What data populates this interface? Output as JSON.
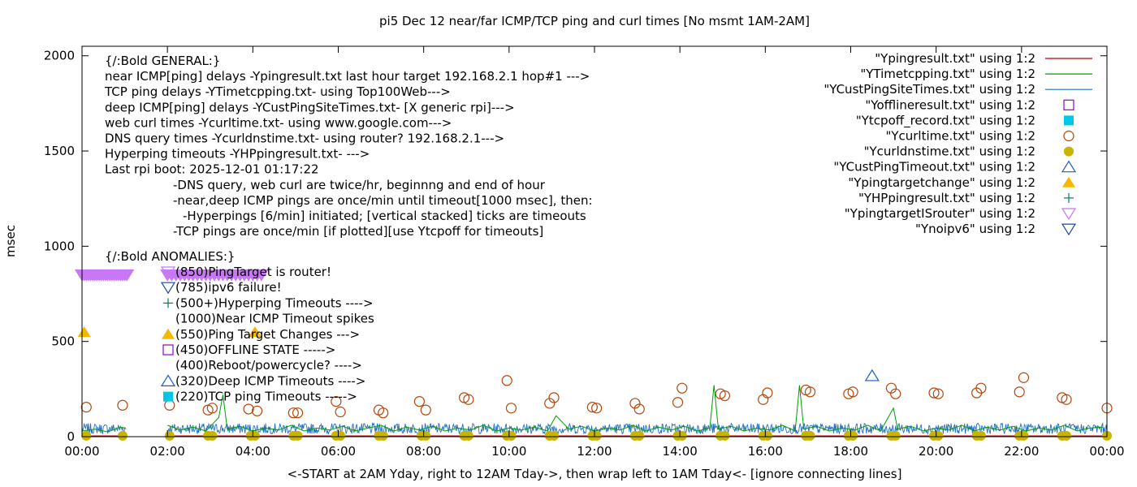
{
  "chart_data": {
    "type": "line",
    "title": "pi5 Dec 12  near/far ICMP/TCP ping and curl times [No msmt 1AM-2AM]",
    "xlabel": "<-START at 2AM Yday, right to 12AM Tday->, then wrap left to 1AM Tday<- [ignore connecting lines]",
    "ylabel": "msec",
    "xlim": [
      0,
      24
    ],
    "ylim": [
      0,
      2050
    ],
    "x_ticks": [
      "00:00",
      "02:00",
      "04:00",
      "06:00",
      "08:00",
      "10:00",
      "12:00",
      "14:00",
      "16:00",
      "18:00",
      "20:00",
      "22:00",
      "00:00"
    ],
    "y_ticks": [
      0,
      500,
      1000,
      1500,
      2000
    ],
    "grid": false,
    "legend_position": "top-right",
    "legend": [
      {
        "label": "\"Ypingresult.txt\" using 1:2",
        "symbol": "line",
        "color": "#c00000"
      },
      {
        "label": "\"YTimetcpping.txt\" using 1:2",
        "symbol": "line",
        "color": "#009e00"
      },
      {
        "label": "\"YCustPingSiteTimes.txt\" using 1:2",
        "symbol": "line",
        "color": "#1f6fc0"
      },
      {
        "label": "\"Yofflineresult.txt\" using 1:2",
        "symbol": "open-square",
        "color": "#9400d3"
      },
      {
        "label": "\"Ytcpoff_record.txt\" using 1:2",
        "symbol": "filled-square",
        "color": "#00c8e6"
      },
      {
        "label": "\"Ycurltime.txt\" using 1:2",
        "symbol": "open-circle",
        "color": "#b5450a"
      },
      {
        "label": "\"Ycurldnstime.txt\" using 1:2",
        "symbol": "filled-circle",
        "color": "#c8b400"
      },
      {
        "label": "\"YCustPingTimeout.txt\" using 1:2",
        "symbol": "open-triangle-up",
        "color": "#1f5cbf"
      },
      {
        "label": "\"Ypingtargetchange\" using 1:2",
        "symbol": "filled-triangle-up",
        "color": "#f5b800"
      },
      {
        "label": "\"YHPpingresult.txt\" using 1:2",
        "symbol": "plus",
        "color": "#008060"
      },
      {
        "label": "\"YpingtargetISrouter\" using 1:2",
        "symbol": "open-triangle-down",
        "color": "#c878f5"
      },
      {
        "label": "\"Ynoipv6\" using 1:2",
        "symbol": "open-triangle-down",
        "color": "#1f4a9a"
      }
    ],
    "annotations": [
      {
        "text": "{/:Bold GENERAL:}",
        "indent": 0
      },
      {
        "text": "near ICMP[ping] delays -Ypingresult.txt last hour target 192.168.2.1 hop#1 --->",
        "indent": 0
      },
      {
        "text": "TCP ping delays -YTimetcpping.txt- using Top100Web--->",
        "indent": 0
      },
      {
        "text": "deep ICMP[ping] delays -YCustPingSiteTimes.txt- [X generic rpi]--->",
        "indent": 0
      },
      {
        "text": "web curl times -Ycurltime.txt- using www.google.com--->",
        "indent": 0
      },
      {
        "text": "DNS query times -Ycurldnstime.txt- using router? 192.168.2.1--->",
        "indent": 0
      },
      {
        "text": "Hyperping timeouts -YHPpingresult.txt- --->",
        "indent": 0
      },
      {
        "text": "Last rpi boot: 2025-12-01 01:17:22",
        "indent": 0
      },
      {
        "text": "-DNS query, web curl are twice/hr, beginnng and end of hour",
        "indent": 1
      },
      {
        "text": "-near,deep ICMP pings are once/min until timeout[1000 msec], then:",
        "indent": 1
      },
      {
        "text": "-Hyperpings [6/min] initiated; [vertical stacked] ticks are timeouts",
        "indent": 2
      },
      {
        "text": "-TCP pings are once/min [if plotted][use Ytcpoff for timeouts]",
        "indent": 1
      },
      {
        "text": "{/:Bold ANOMALIES:}",
        "indent": 0
      }
    ],
    "anomaly_key": [
      {
        "text": "(850)PingTarget is router!",
        "symbol": "open-triangle-down",
        "color": "#c878f5"
      },
      {
        "text": "(785)ipv6 failure!",
        "symbol": "open-triangle-down",
        "color": "#1f4a9a"
      },
      {
        "text": "(500+)Hyperping Timeouts ---->",
        "symbol": "plus",
        "color": "#008060"
      },
      {
        "text": "(1000)Near ICMP Timeout spikes",
        "symbol": "none",
        "color": ""
      },
      {
        "text": "(550)Ping Target Changes --->",
        "symbol": "filled-triangle-up",
        "color": "#f5b800"
      },
      {
        "text": "(450)OFFLINE STATE ----->",
        "symbol": "open-square",
        "color": "#9400d3"
      },
      {
        "text": "(400)Reboot/powercycle? ---->",
        "symbol": "none",
        "color": ""
      },
      {
        "text": "(320)Deep ICMP Timeouts ---->",
        "symbol": "open-triangle-up",
        "color": "#1f5cbf"
      },
      {
        "text": "(220)TCP ping Timeouts ----->",
        "symbol": "filled-square",
        "color": "#00c8e6"
      }
    ],
    "series": [
      {
        "legend_index": 10,
        "style": "thick-band",
        "points": [
          [
            0,
            850
          ],
          [
            0.05,
            850
          ],
          [
            0.1,
            850
          ],
          [
            0.15,
            850
          ],
          [
            0.2,
            850
          ],
          [
            0.25,
            850
          ],
          [
            0.3,
            850
          ],
          [
            0.35,
            850
          ],
          [
            0.4,
            850
          ],
          [
            0.45,
            850
          ],
          [
            0.5,
            850
          ],
          [
            0.55,
            850
          ],
          [
            0.6,
            850
          ],
          [
            0.65,
            850
          ],
          [
            0.7,
            850
          ],
          [
            0.75,
            850
          ],
          [
            0.8,
            850
          ],
          [
            0.85,
            850
          ],
          [
            0.9,
            850
          ],
          [
            0.95,
            850
          ],
          [
            1.0,
            850
          ],
          [
            1.05,
            850
          ],
          [
            2.0,
            850
          ],
          [
            2.1,
            850
          ],
          [
            2.2,
            850
          ],
          [
            2.3,
            850
          ],
          [
            2.4,
            850
          ],
          [
            2.5,
            850
          ],
          [
            2.6,
            850
          ],
          [
            2.7,
            850
          ],
          [
            2.8,
            850
          ],
          [
            2.9,
            850
          ],
          [
            3.0,
            850
          ],
          [
            3.1,
            850
          ],
          [
            3.2,
            850
          ],
          [
            3.3,
            850
          ],
          [
            3.4,
            850
          ],
          [
            3.5,
            850
          ],
          [
            3.6,
            850
          ],
          [
            3.7,
            850
          ],
          [
            3.8,
            850
          ],
          [
            3.9,
            850
          ],
          [
            4.0,
            850
          ],
          [
            4.1,
            850
          ],
          [
            4.2,
            850
          ]
        ]
      },
      {
        "legend_index": 8,
        "points": [
          [
            0.05,
            550
          ],
          [
            4.05,
            550
          ]
        ]
      },
      {
        "legend_index": 7,
        "points": [
          [
            18.5,
            320
          ]
        ]
      },
      {
        "legend_index": 5,
        "points": [
          [
            0.1,
            155
          ],
          [
            0.95,
            165
          ],
          [
            2.05,
            165
          ],
          [
            2.95,
            140
          ],
          [
            3.05,
            150
          ],
          [
            3.9,
            145
          ],
          [
            4.1,
            135
          ],
          [
            4.95,
            125
          ],
          [
            5.05,
            125
          ],
          [
            5.95,
            185
          ],
          [
            6.05,
            130
          ],
          [
            6.95,
            140
          ],
          [
            7.05,
            125
          ],
          [
            7.9,
            185
          ],
          [
            8.05,
            140
          ],
          [
            8.95,
            205
          ],
          [
            9.05,
            195
          ],
          [
            9.95,
            295
          ],
          [
            10.05,
            150
          ],
          [
            10.95,
            175
          ],
          [
            11.05,
            205
          ],
          [
            11.95,
            155
          ],
          [
            12.05,
            150
          ],
          [
            12.95,
            175
          ],
          [
            13.05,
            145
          ],
          [
            13.95,
            180
          ],
          [
            14.05,
            255
          ],
          [
            14.95,
            225
          ],
          [
            15.05,
            215
          ],
          [
            15.95,
            195
          ],
          [
            16.05,
            230
          ],
          [
            16.95,
            245
          ],
          [
            17.05,
            235
          ],
          [
            17.95,
            225
          ],
          [
            18.05,
            235
          ],
          [
            18.95,
            255
          ],
          [
            19.05,
            225
          ],
          [
            19.95,
            230
          ],
          [
            20.05,
            225
          ],
          [
            20.95,
            230
          ],
          [
            21.05,
            255
          ],
          [
            21.95,
            235
          ],
          [
            22.05,
            310
          ],
          [
            22.95,
            205
          ],
          [
            23.05,
            195
          ],
          [
            24.0,
            150
          ]
        ]
      },
      {
        "legend_index": 6,
        "points": [
          [
            0.1,
            5
          ],
          [
            0.95,
            5
          ],
          [
            2.05,
            5
          ],
          [
            2.95,
            5
          ],
          [
            3.05,
            5
          ],
          [
            3.95,
            5
          ],
          [
            4.05,
            5
          ],
          [
            4.95,
            5
          ],
          [
            5.05,
            5
          ],
          [
            5.95,
            5
          ],
          [
            6.05,
            5
          ],
          [
            6.95,
            5
          ],
          [
            7.05,
            5
          ],
          [
            7.95,
            5
          ],
          [
            8.05,
            5
          ],
          [
            8.95,
            5
          ],
          [
            9.05,
            5
          ],
          [
            9.95,
            5
          ],
          [
            10.05,
            5
          ],
          [
            10.95,
            5
          ],
          [
            11.05,
            5
          ],
          [
            11.95,
            5
          ],
          [
            12.05,
            5
          ],
          [
            12.95,
            5
          ],
          [
            13.05,
            5
          ],
          [
            13.95,
            5
          ],
          [
            14.05,
            5
          ],
          [
            14.95,
            5
          ],
          [
            15.05,
            5
          ],
          [
            15.95,
            5
          ],
          [
            16.05,
            5
          ],
          [
            16.95,
            5
          ],
          [
            17.05,
            5
          ],
          [
            17.95,
            5
          ],
          [
            18.05,
            5
          ],
          [
            18.95,
            5
          ],
          [
            19.05,
            5
          ],
          [
            19.95,
            5
          ],
          [
            20.05,
            5
          ],
          [
            20.95,
            5
          ],
          [
            21.05,
            5
          ],
          [
            21.95,
            5
          ],
          [
            22.05,
            5
          ],
          [
            22.95,
            5
          ],
          [
            23.05,
            5
          ],
          [
            24.0,
            5
          ]
        ]
      },
      {
        "legend_index": 1,
        "points": [
          [
            0,
            30
          ],
          [
            0.3,
            40
          ],
          [
            0.6,
            25
          ],
          [
            0.9,
            50
          ],
          [
            1.0,
            45
          ],
          [
            2.0,
            60
          ],
          [
            2.3,
            35
          ],
          [
            2.6,
            50
          ],
          [
            2.9,
            30
          ],
          [
            3.2,
            100
          ],
          [
            3.3,
            220
          ],
          [
            3.4,
            40
          ],
          [
            3.7,
            55
          ],
          [
            4.0,
            30
          ],
          [
            4.3,
            45
          ],
          [
            4.6,
            35
          ],
          [
            4.9,
            60
          ],
          [
            5.2,
            30
          ],
          [
            5.5,
            45
          ],
          [
            5.8,
            35
          ],
          [
            6.1,
            55
          ],
          [
            6.4,
            30
          ],
          [
            6.7,
            45
          ],
          [
            7.0,
            60
          ],
          [
            7.3,
            30
          ],
          [
            7.6,
            50
          ],
          [
            7.9,
            35
          ],
          [
            8.2,
            55
          ],
          [
            8.5,
            30
          ],
          [
            8.8,
            45
          ],
          [
            9.1,
            35
          ],
          [
            9.4,
            60
          ],
          [
            9.7,
            30
          ],
          [
            10.0,
            45
          ],
          [
            10.3,
            35
          ],
          [
            10.6,
            50
          ],
          [
            10.9,
            30
          ],
          [
            11.1,
            110
          ],
          [
            11.4,
            40
          ],
          [
            11.7,
            55
          ],
          [
            12.0,
            30
          ],
          [
            12.3,
            45
          ],
          [
            12.6,
            35
          ],
          [
            12.9,
            60
          ],
          [
            13.2,
            30
          ],
          [
            13.5,
            50
          ],
          [
            13.8,
            35
          ],
          [
            14.1,
            55
          ],
          [
            14.4,
            30
          ],
          [
            14.7,
            45
          ],
          [
            14.8,
            270
          ],
          [
            14.9,
            40
          ],
          [
            15.2,
            55
          ],
          [
            15.5,
            30
          ],
          [
            15.8,
            45
          ],
          [
            16.1,
            35
          ],
          [
            16.4,
            60
          ],
          [
            16.7,
            30
          ],
          [
            16.8,
            270
          ],
          [
            16.9,
            40
          ],
          [
            17.2,
            55
          ],
          [
            17.5,
            30
          ],
          [
            17.8,
            45
          ],
          [
            18.1,
            35
          ],
          [
            18.4,
            60
          ],
          [
            18.7,
            30
          ],
          [
            19.0,
            150
          ],
          [
            19.1,
            40
          ],
          [
            19.4,
            55
          ],
          [
            19.7,
            30
          ],
          [
            20.0,
            45
          ],
          [
            20.3,
            35
          ],
          [
            20.6,
            60
          ],
          [
            20.9,
            30
          ],
          [
            21.2,
            50
          ],
          [
            21.5,
            35
          ],
          [
            21.8,
            55
          ],
          [
            22.1,
            30
          ],
          [
            22.4,
            45
          ],
          [
            22.7,
            35
          ],
          [
            23.0,
            60
          ],
          [
            23.3,
            30
          ],
          [
            23.6,
            45
          ],
          [
            23.9,
            50
          ]
        ]
      }
    ]
  }
}
